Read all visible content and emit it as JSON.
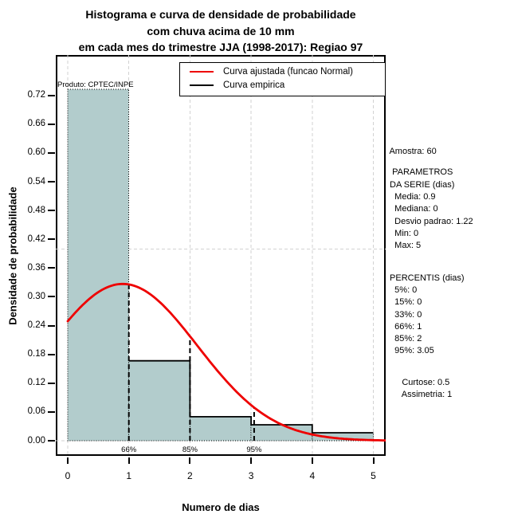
{
  "title": {
    "line1": "Histograma e curva de densidade de probabilidade",
    "line2": "com chuva acima de 10 mm",
    "line3": "em cada mes do trimestre JJA (1998-2017): Regiao 97"
  },
  "watermark": "Produto: CPTEC/INPE",
  "legend": {
    "items": [
      {
        "label": "Curva ajustada (funcao Normal)",
        "color": "#ee0000"
      },
      {
        "label": "Curva empirica",
        "color": "#000000"
      }
    ]
  },
  "axes": {
    "x_label": "Numero de dias",
    "y_label": "Densidade de probabilidade",
    "x_ticks": [
      "0",
      "1",
      "2",
      "3",
      "4",
      "5"
    ],
    "y_ticks": [
      "0.00",
      "0.06",
      "0.12",
      "0.18",
      "0.24",
      "0.30",
      "0.36",
      "0.42",
      "0.48",
      "0.54",
      "0.60",
      "0.66",
      "0.72"
    ]
  },
  "side_panel": {
    "lines": [
      " Amostra: 60",
      "  PARAMETROS",
      " DA SERIE (dias)",
      "   Media: 0.9",
      "   Mediana: 0",
      "   Desvio padrao: 1.22",
      "   Min: 0",
      "   Max: 5",
      " PERCENTIS (dias)",
      "   5%: 0",
      "   15%: 0",
      "   33%: 0",
      "   66%: 1",
      "   85%: 2",
      "   95%: 3.05",
      "      Curtose: 0.5",
      "      Assimetria: 1"
    ]
  },
  "chart_data": {
    "type": "bar",
    "subtype": "histogram-with-density-curves",
    "title": "Histograma e curva de densidade de probabilidade com chuva acima de 10 mm em cada mes do trimestre JJA (1998-2017): Regiao 97",
    "xlabel": "Numero de dias",
    "ylabel": "Densidade de probabilidade",
    "xlim": [
      0,
      5
    ],
    "ylim": [
      0,
      0.8
    ],
    "y_tick_step": 0.06,
    "grid": {
      "vertical_x": [
        0,
        1,
        2,
        3,
        4,
        5
      ],
      "horizontal_y": [
        0,
        0.4
      ],
      "color": "#d2d2d2",
      "style": "dashed"
    },
    "bins": {
      "breaks": [
        0,
        1,
        2,
        3,
        4,
        5
      ],
      "densities": [
        0.7333,
        0.1667,
        0.05,
        0.0333,
        0.0167
      ],
      "fill": "#b2cccc",
      "border_style": "dotted-black"
    },
    "empirical_curve": {
      "label": "Curva empirica",
      "color": "#000000",
      "steps": [
        {
          "x_from": 1,
          "x_to": 2,
          "density": 0.1667
        },
        {
          "x_from": 2,
          "x_to": 3,
          "density": 0.05
        },
        {
          "x_from": 3,
          "x_to": 4,
          "density": 0.0333
        },
        {
          "x_from": 4,
          "x_to": 5,
          "density": 0.0167
        }
      ]
    },
    "fitted_curve": {
      "label": "Curva ajustada (funcao Normal)",
      "distribution": "normal",
      "mean": 0.9,
      "sd": 1.22,
      "color": "#ee0000",
      "x_range": [
        0,
        5.2
      ],
      "peak_density": 0.327
    },
    "percentile_lines": [
      {
        "label": "66%",
        "x": 1
      },
      {
        "label": "85%",
        "x": 2
      },
      {
        "label": "95%",
        "x": 3.05
      }
    ],
    "stats": {
      "amostra": 60,
      "media": 0.9,
      "mediana": 0,
      "desvio_padrao": 1.22,
      "min": 0,
      "max": 5,
      "percentis": {
        "5%": 0,
        "15%": 0,
        "33%": 0,
        "66%": 1,
        "85%": 2,
        "95%": 3.05
      },
      "curtose": 0.5,
      "assimetria": 1
    }
  }
}
